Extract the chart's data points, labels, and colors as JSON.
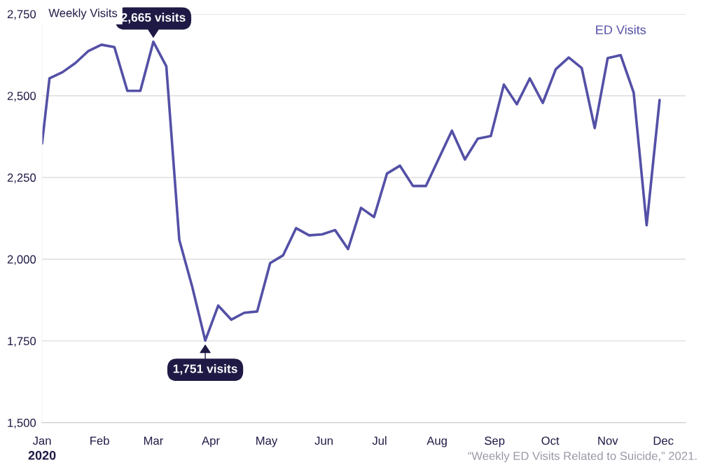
{
  "chart_data": {
    "type": "line",
    "ylabel": "Weekly Visits",
    "xlabel": "2020",
    "x": [
      "2020-01-01",
      "2020-01-05",
      "2020-01-12",
      "2020-01-19",
      "2020-01-26",
      "2020-02-02",
      "2020-02-09",
      "2020-02-16",
      "2020-02-23",
      "2020-03-01",
      "2020-03-08",
      "2020-03-15",
      "2020-03-22",
      "2020-03-29",
      "2020-04-05",
      "2020-04-12",
      "2020-04-19",
      "2020-04-26",
      "2020-05-03",
      "2020-05-10",
      "2020-05-17",
      "2020-05-24",
      "2020-05-31",
      "2020-06-07",
      "2020-06-14",
      "2020-06-21",
      "2020-06-28",
      "2020-07-05",
      "2020-07-12",
      "2020-07-19",
      "2020-07-26",
      "2020-08-02",
      "2020-08-09",
      "2020-08-16",
      "2020-08-23",
      "2020-08-30",
      "2020-09-06",
      "2020-09-13",
      "2020-09-20",
      "2020-09-27",
      "2020-10-04",
      "2020-10-11",
      "2020-10-18",
      "2020-10-25",
      "2020-11-01",
      "2020-11-08",
      "2020-11-15",
      "2020-11-22",
      "2020-11-29"
    ],
    "series": [
      {
        "name": "ED Visits",
        "color": "#5450a6",
        "values": [
          2354,
          2553,
          2572,
          2600,
          2637,
          2656,
          2649,
          2515,
          2515,
          2665,
          2590,
          2059,
          1915,
          1751,
          1858,
          1815,
          1836,
          1840,
          1988,
          2012,
          2095,
          2073,
          2076,
          2089,
          2031,
          2157,
          2129,
          2262,
          2286,
          2224,
          2224,
          2309,
          2393,
          2305,
          2369,
          2377,
          2534,
          2474,
          2553,
          2478,
          2581,
          2617,
          2585,
          2401,
          2615,
          2624,
          2510,
          2104,
          2487
        ]
      }
    ],
    "xlim": [
      "2020-01-01",
      "2020-12-13"
    ],
    "xticks": [
      {
        "value": "2020-01-01",
        "label": "Jan"
      },
      {
        "value": "2020-02-01",
        "label": "Feb"
      },
      {
        "value": "2020-03-01",
        "label": "Mar"
      },
      {
        "value": "2020-04-01",
        "label": "Apr"
      },
      {
        "value": "2020-05-01",
        "label": "May"
      },
      {
        "value": "2020-06-01",
        "label": "Jun"
      },
      {
        "value": "2020-07-01",
        "label": "Jul"
      },
      {
        "value": "2020-08-01",
        "label": "Aug"
      },
      {
        "value": "2020-09-01",
        "label": "Sep"
      },
      {
        "value": "2020-10-01",
        "label": "Oct"
      },
      {
        "value": "2020-11-01",
        "label": "Nov"
      },
      {
        "value": "2020-12-01",
        "label": "Dec"
      }
    ],
    "ylim": [
      1500,
      2750
    ],
    "yticks": [
      {
        "value": 1500,
        "label": "1,500"
      },
      {
        "value": 1750,
        "label": "1,750"
      },
      {
        "value": 2000,
        "label": "2,000"
      },
      {
        "value": 2250,
        "label": "2,250"
      },
      {
        "value": 2500,
        "label": "2,500"
      },
      {
        "value": 2750,
        "label": "2,750"
      }
    ],
    "grid": "y",
    "marker": "none",
    "line_style": "solid",
    "annotations": [
      {
        "text": "2,665 visits",
        "x": "2020-03-01",
        "y": 2665
      },
      {
        "text": "1,751 visits",
        "x": "2020-03-29",
        "y": 1751
      },
      "“Weekly ED Visits Related to Suicide,” 2021."
    ]
  }
}
